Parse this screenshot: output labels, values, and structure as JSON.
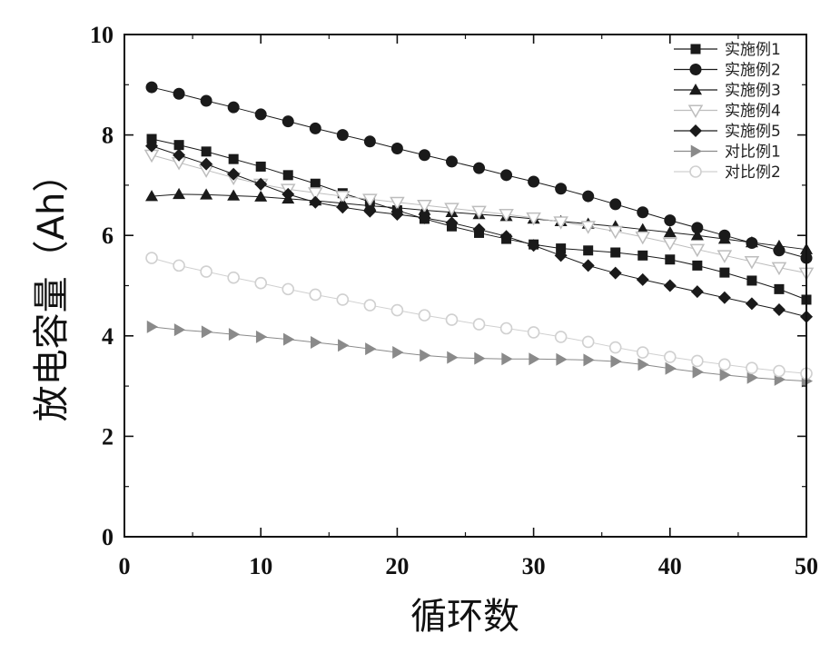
{
  "chart_data": {
    "type": "scatter",
    "title": "",
    "xlabel": "循环数",
    "ylabel": "放电容量（Ah）",
    "xlim": [
      0,
      50
    ],
    "ylim": [
      0,
      10
    ],
    "xticks": [
      0,
      10,
      20,
      30,
      40,
      50
    ],
    "yticks": [
      0,
      2,
      4,
      6,
      8,
      10
    ],
    "grid": false,
    "legend_position": "top-right",
    "series": [
      {
        "name": "实施例1",
        "marker": "square",
        "color": "#1a1a1a",
        "x": [
          2,
          4,
          6,
          8,
          10,
          12,
          14,
          16,
          18,
          20,
          22,
          24,
          26,
          28,
          30,
          32,
          34,
          36,
          38,
          40,
          42,
          44,
          46,
          48,
          50
        ],
        "y": [
          7.92,
          7.8,
          7.67,
          7.52,
          7.37,
          7.2,
          7.03,
          6.84,
          6.67,
          6.5,
          6.33,
          6.18,
          6.05,
          5.93,
          5.82,
          5.74,
          5.7,
          5.66,
          5.6,
          5.52,
          5.4,
          5.26,
          5.1,
          4.93,
          4.72
        ]
      },
      {
        "name": "实施例2",
        "marker": "circle",
        "color": "#1a1a1a",
        "x": [
          2,
          4,
          6,
          8,
          10,
          12,
          14,
          16,
          18,
          20,
          22,
          24,
          26,
          28,
          30,
          32,
          34,
          36,
          38,
          40,
          42,
          44,
          46,
          48,
          50
        ],
        "y": [
          8.95,
          8.82,
          8.68,
          8.55,
          8.41,
          8.27,
          8.13,
          8.0,
          7.87,
          7.73,
          7.6,
          7.47,
          7.34,
          7.2,
          7.07,
          6.93,
          6.78,
          6.62,
          6.46,
          6.3,
          6.15,
          6.0,
          5.85,
          5.7,
          5.55
        ]
      },
      {
        "name": "实施例3",
        "marker": "triangle-up",
        "color": "#1a1a1a",
        "x": [
          2,
          4,
          6,
          8,
          10,
          12,
          14,
          16,
          18,
          20,
          22,
          24,
          26,
          28,
          30,
          32,
          34,
          36,
          38,
          40,
          42,
          44,
          46,
          48,
          50
        ],
        "y": [
          6.78,
          6.82,
          6.81,
          6.79,
          6.77,
          6.73,
          6.69,
          6.64,
          6.59,
          6.55,
          6.5,
          6.46,
          6.42,
          6.38,
          6.33,
          6.28,
          6.23,
          6.18,
          6.12,
          6.06,
          6.0,
          5.93,
          5.86,
          5.79,
          5.72
        ]
      },
      {
        "name": "实施例4",
        "marker": "triangle-down",
        "color": "#bdbdbd",
        "x": [
          2,
          4,
          6,
          8,
          10,
          12,
          14,
          16,
          18,
          20,
          22,
          24,
          26,
          28,
          30,
          32,
          34,
          36,
          38,
          40,
          42,
          44,
          46,
          48,
          50
        ],
        "y": [
          7.6,
          7.45,
          7.3,
          7.15,
          7.02,
          6.92,
          6.85,
          6.78,
          6.72,
          6.66,
          6.6,
          6.54,
          6.48,
          6.42,
          6.35,
          6.27,
          6.18,
          6.08,
          5.97,
          5.85,
          5.72,
          5.6,
          5.48,
          5.36,
          5.25
        ]
      },
      {
        "name": "实施例5",
        "marker": "diamond",
        "color": "#1a1a1a",
        "x": [
          2,
          4,
          6,
          8,
          10,
          12,
          14,
          16,
          18,
          20,
          22,
          24,
          26,
          28,
          30,
          32,
          34,
          36,
          38,
          40,
          42,
          44,
          46,
          48,
          50
        ],
        "y": [
          7.78,
          7.6,
          7.42,
          7.22,
          7.02,
          6.82,
          6.66,
          6.56,
          6.48,
          6.42,
          6.35,
          6.25,
          6.12,
          5.98,
          5.8,
          5.6,
          5.4,
          5.25,
          5.12,
          5.0,
          4.88,
          4.76,
          4.64,
          4.52,
          4.38
        ]
      },
      {
        "name": "对比例1",
        "marker": "triangle-right",
        "color": "#8a8a8a",
        "x": [
          2,
          4,
          6,
          8,
          10,
          12,
          14,
          16,
          18,
          20,
          22,
          24,
          26,
          28,
          30,
          32,
          34,
          36,
          38,
          40,
          42,
          44,
          46,
          48,
          50
        ],
        "y": [
          4.18,
          4.12,
          4.08,
          4.03,
          3.98,
          3.93,
          3.87,
          3.81,
          3.74,
          3.67,
          3.61,
          3.57,
          3.55,
          3.54,
          3.54,
          3.53,
          3.52,
          3.49,
          3.43,
          3.35,
          3.28,
          3.22,
          3.17,
          3.13,
          3.1
        ]
      },
      {
        "name": "对比例2",
        "marker": "circle-open",
        "color": "#d0d0d0",
        "x": [
          2,
          4,
          6,
          8,
          10,
          12,
          14,
          16,
          18,
          20,
          22,
          24,
          26,
          28,
          30,
          32,
          34,
          36,
          38,
          40,
          42,
          44,
          46,
          48,
          50
        ],
        "y": [
          5.55,
          5.4,
          5.28,
          5.16,
          5.05,
          4.93,
          4.82,
          4.72,
          4.61,
          4.51,
          4.41,
          4.32,
          4.23,
          4.15,
          4.07,
          3.98,
          3.88,
          3.77,
          3.67,
          3.58,
          3.5,
          3.43,
          3.36,
          3.3,
          3.25
        ]
      }
    ]
  }
}
